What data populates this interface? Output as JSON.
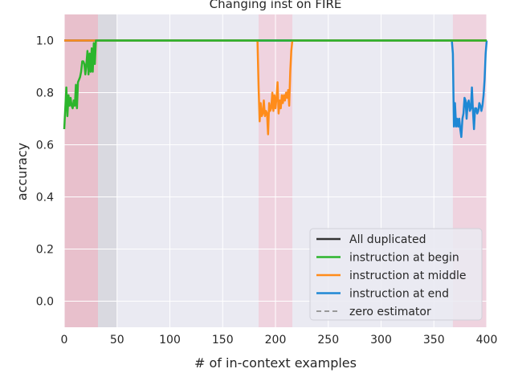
{
  "chart_data": {
    "type": "line",
    "title": "Changing inst on FIRE",
    "xlabel": "# of in-context examples",
    "ylabel": "accuracy",
    "xlim": [
      0,
      400
    ],
    "ylim": [
      -0.1,
      1.1
    ],
    "xticks": [
      0,
      50,
      100,
      150,
      200,
      250,
      300,
      350,
      400
    ],
    "yticks": [
      0.0,
      0.2,
      0.4,
      0.6,
      0.8,
      1.0
    ],
    "grid": true,
    "legend_position": "lower-right",
    "shaded_regions": [
      {
        "x": [
          0,
          32
        ],
        "color": "#e8c0cc"
      },
      {
        "x": [
          32,
          50
        ],
        "color": "#d9d9e0"
      },
      {
        "x": [
          184,
          216
        ],
        "color": "#efd3df"
      },
      {
        "x": [
          368,
          400
        ],
        "color": "#efd3df"
      }
    ],
    "series": [
      {
        "name": "All duplicated",
        "color": "#333333",
        "style": "solid",
        "x": [
          0,
          400
        ],
        "y": [
          1.0,
          1.0
        ]
      },
      {
        "name": "instruction at begin",
        "color": "#2cb52c",
        "style": "solid",
        "x": [
          0,
          1,
          2,
          3,
          4,
          5,
          6,
          7,
          8,
          9,
          10,
          11,
          12,
          13,
          14,
          15,
          16,
          17,
          18,
          19,
          20,
          21,
          22,
          23,
          24,
          25,
          26,
          27,
          28,
          29,
          30,
          31,
          32,
          33,
          34,
          400
        ],
        "y": [
          0.66,
          0.74,
          0.82,
          0.71,
          0.79,
          0.75,
          0.78,
          0.75,
          0.74,
          0.77,
          0.75,
          0.83,
          0.74,
          0.84,
          0.85,
          0.86,
          0.88,
          0.92,
          0.92,
          0.91,
          0.87,
          0.91,
          0.96,
          0.87,
          0.95,
          0.88,
          0.97,
          0.88,
          0.99,
          0.91,
          1.0,
          1.0,
          1.0,
          1.0,
          1.0,
          1.0
        ]
      },
      {
        "name": "instruction at middle",
        "color": "#ff8c1a",
        "style": "solid",
        "x": [
          0,
          1,
          2,
          183,
          184,
          185,
          186,
          187,
          188,
          189,
          190,
          191,
          192,
          193,
          194,
          195,
          196,
          197,
          198,
          199,
          200,
          201,
          202,
          203,
          204,
          205,
          206,
          207,
          208,
          209,
          210,
          211,
          212,
          213,
          214,
          215,
          216,
          217,
          400
        ],
        "y": [
          1.0,
          1.0,
          1.0,
          1.0,
          0.82,
          0.69,
          0.76,
          0.71,
          0.72,
          0.77,
          0.71,
          0.73,
          0.72,
          0.64,
          0.76,
          0.73,
          0.74,
          0.8,
          0.73,
          0.79,
          0.74,
          0.78,
          0.84,
          0.72,
          0.77,
          0.74,
          0.79,
          0.76,
          0.79,
          0.77,
          0.8,
          0.78,
          0.81,
          0.75,
          0.88,
          0.96,
          1.0,
          1.0,
          1.0
        ]
      },
      {
        "name": "instruction at end",
        "color": "#1f88d4",
        "style": "solid",
        "x": [
          0,
          367,
          368,
          369,
          370,
          371,
          372,
          373,
          374,
          375,
          376,
          377,
          378,
          379,
          380,
          381,
          382,
          383,
          384,
          385,
          386,
          387,
          388,
          389,
          390,
          391,
          392,
          393,
          394,
          395,
          396,
          397,
          398,
          399,
          400
        ],
        "y": [
          1.0,
          1.0,
          0.95,
          0.67,
          0.76,
          0.67,
          0.7,
          0.67,
          0.7,
          0.66,
          0.63,
          0.7,
          0.72,
          0.78,
          0.77,
          0.7,
          0.76,
          0.77,
          0.73,
          0.74,
          0.82,
          0.73,
          0.66,
          0.74,
          0.74,
          0.72,
          0.73,
          0.76,
          0.75,
          0.73,
          0.75,
          0.79,
          0.85,
          0.95,
          1.0
        ]
      },
      {
        "name": "zero estimator",
        "color": "#999999",
        "style": "dashed",
        "x": [],
        "y": []
      }
    ]
  }
}
